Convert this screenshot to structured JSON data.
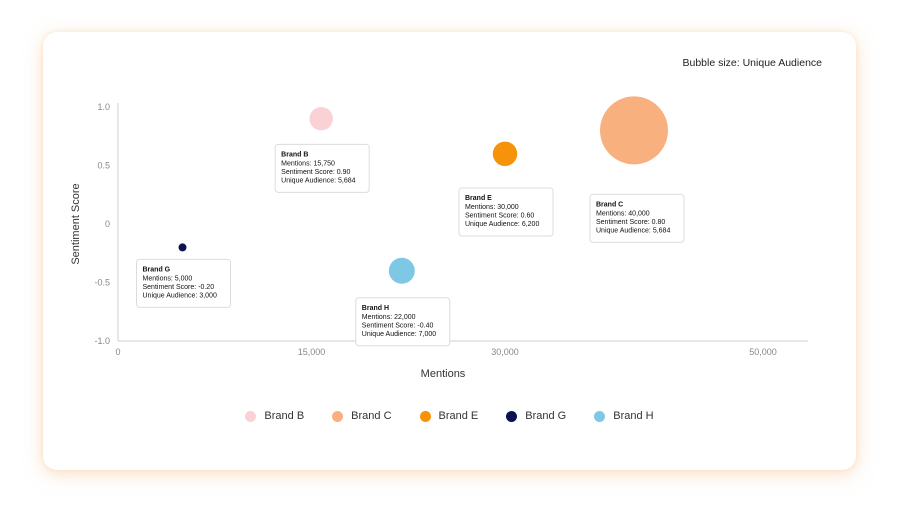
{
  "note": "Bubble size: Unique Audience",
  "chart_data": {
    "type": "scatter",
    "xlabel": "Mentions",
    "ylabel": "Sentiment Score",
    "xlim": [
      0,
      50000
    ],
    "ylim": [
      -1.0,
      1.0
    ],
    "xticks": [
      {
        "value": 0,
        "label": "0"
      },
      {
        "value": 15000,
        "label": "15,000"
      },
      {
        "value": 30000,
        "label": "30,000"
      },
      {
        "value": 50000,
        "label": "50,000"
      }
    ],
    "yticks": [
      {
        "value": 1.0,
        "label": "1.0"
      },
      {
        "value": 0.5,
        "label": "0.5"
      },
      {
        "value": 0,
        "label": "0"
      },
      {
        "value": -0.5,
        "label": "-0.5"
      },
      {
        "value": -1.0,
        "label": "-1.0"
      }
    ],
    "size_field": "Unique Audience",
    "series": [
      {
        "name": "Brand B",
        "color": "#FAD1D4",
        "x": 15750,
        "y": 0.9,
        "size": 5684,
        "tooltip": [
          "Mentions: 15,750",
          "Sentiment Score: 0.90",
          "Unique Audience: 5,684"
        ]
      },
      {
        "name": "Brand C",
        "color": "#F9B07F",
        "x": 40000,
        "y": 0.8,
        "size": 5684,
        "tooltip": [
          "Mentions: 40,000",
          "Sentiment Score: 0.80",
          "Unique Audience: 5,684"
        ]
      },
      {
        "name": "Brand E",
        "color": "#F7930A",
        "x": 30000,
        "y": 0.6,
        "size": 6200,
        "tooltip": [
          "Mentions: 30,000",
          "Sentiment Score: 0.60",
          "Unique Audience: 6,200"
        ]
      },
      {
        "name": "Brand G",
        "color": "#0B1250",
        "x": 5000,
        "y": -0.2,
        "size": 3000,
        "tooltip": [
          "Mentions: 5,000",
          "Sentiment Score: -0.20",
          "Unique Audience: 3,000"
        ]
      },
      {
        "name": "Brand H",
        "color": "#7EC8E6",
        "x": 22000,
        "y": -0.4,
        "size": 7000,
        "tooltip": [
          "Mentions: 22,000",
          "Sentiment Score: -0.40",
          "Unique Audience: 7,000"
        ]
      }
    ]
  }
}
